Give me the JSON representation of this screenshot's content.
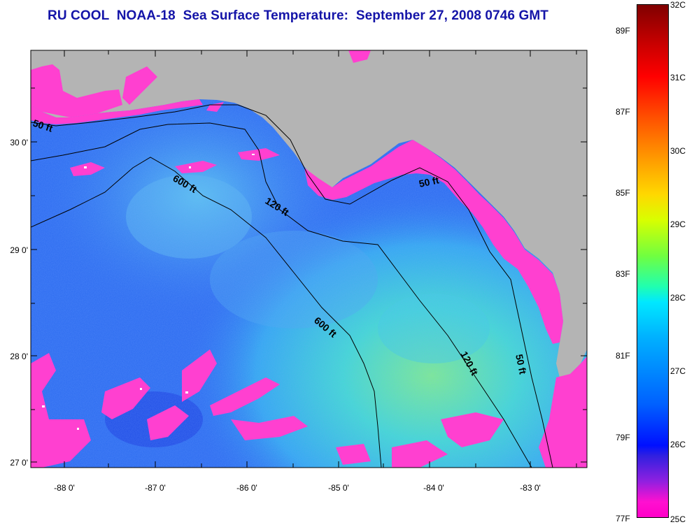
{
  "title": "RU COOL  NOAA-18  Sea Surface Temperature:  September 27, 2008 0746 GMT",
  "axes": {
    "lon_ticks": [
      "-88 0'",
      "-87 0'",
      "-86 0'",
      "-85 0'",
      "-84 0'",
      "-83 0'"
    ],
    "lat_ticks": [
      "30 0'",
      "29 0'",
      "28 0'",
      "27 0'"
    ]
  },
  "contour_labels": [
    {
      "text": "50 ft",
      "id": "contour-50ft-west"
    },
    {
      "text": "600 ft",
      "id": "contour-600ft-north"
    },
    {
      "text": "120 ft",
      "id": "contour-120ft-north"
    },
    {
      "text": "50 ft",
      "id": "contour-50ft-bigbend"
    },
    {
      "text": "600 ft",
      "id": "contour-600ft-south"
    },
    {
      "text": "120 ft",
      "id": "contour-120ft-south"
    },
    {
      "text": "50 ft",
      "id": "contour-50ft-south"
    }
  ],
  "colorbar": {
    "fahrenheit": [
      "89F",
      "87F",
      "85F",
      "83F",
      "81F",
      "79F",
      "77F"
    ],
    "celsius": [
      "32C",
      "31C",
      "30C",
      "29C",
      "28C",
      "27C",
      "26C",
      "25C"
    ]
  },
  "colors": {
    "title": "#1414a8",
    "land": "#b4b4b4",
    "ocean_deep": "#2a6af0",
    "ocean_warm": "#40e0c8",
    "coastal_cold": "#ff40d0"
  }
}
